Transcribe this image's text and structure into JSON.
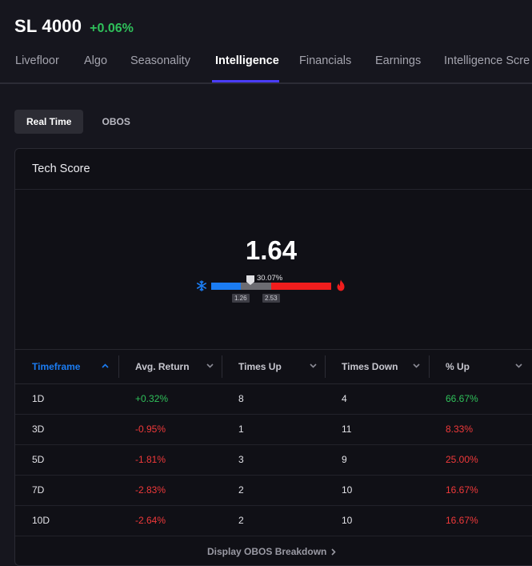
{
  "header": {
    "ticker": "SL 4000",
    "change": "+0.06%"
  },
  "tabs": [
    {
      "label": "Livefloor"
    },
    {
      "label": "Algo"
    },
    {
      "label": "Seasonality"
    },
    {
      "label": "Intelligence"
    },
    {
      "label": "Financials"
    },
    {
      "label": "Earnings"
    },
    {
      "label": "Intelligence Scre"
    }
  ],
  "active_tab": "Intelligence",
  "subtabs": [
    {
      "label": "Real Time"
    },
    {
      "label": "OBOS"
    }
  ],
  "active_subtab": "Real Time",
  "card": {
    "title": "Tech Score",
    "score": "1.64",
    "gauge": {
      "percent_label": "30.07%",
      "low_label": "1.26",
      "high_label": "2.53"
    }
  },
  "table": {
    "headers": [
      "Timeframe",
      "Avg. Return",
      "Times Up",
      "Times Down",
      "% Up"
    ],
    "sorted_column": "Timeframe",
    "rows": [
      {
        "timeframe": "1D",
        "avg_return": "+0.32%",
        "times_up": "8",
        "times_down": "4",
        "pct_up": "66.67%",
        "avg_dir": "pos",
        "pct_dir": "pos"
      },
      {
        "timeframe": "3D",
        "avg_return": "-0.95%",
        "times_up": "1",
        "times_down": "11",
        "pct_up": "8.33%",
        "avg_dir": "neg",
        "pct_dir": "neg"
      },
      {
        "timeframe": "5D",
        "avg_return": "-1.81%",
        "times_up": "3",
        "times_down": "9",
        "pct_up": "25.00%",
        "avg_dir": "neg",
        "pct_dir": "neg"
      },
      {
        "timeframe": "7D",
        "avg_return": "-2.83%",
        "times_up": "2",
        "times_down": "10",
        "pct_up": "16.67%",
        "avg_dir": "neg",
        "pct_dir": "neg"
      },
      {
        "timeframe": "10D",
        "avg_return": "-2.64%",
        "times_up": "2",
        "times_down": "10",
        "pct_up": "16.67%",
        "avg_dir": "neg",
        "pct_dir": "neg"
      }
    ]
  },
  "footer": {
    "link_label": "Display OBOS Breakdown"
  },
  "colors": {
    "positive": "#2fc05a",
    "negative": "#f0393a",
    "accent": "#4a3dff",
    "header_active": "#1b7cf2"
  },
  "icons": {
    "cold": "snowflake-icon",
    "hot": "flame-icon",
    "sort": "chevron-icon",
    "link": "chevron-right-icon"
  }
}
